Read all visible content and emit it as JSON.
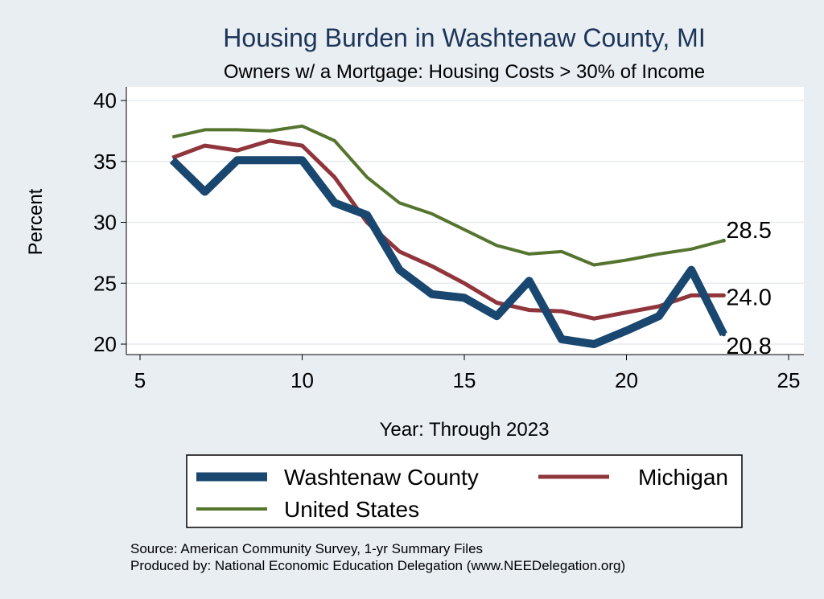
{
  "chart_data": {
    "type": "line",
    "title": "Housing Burden in Washtenaw County, MI",
    "subtitle": "Owners w/ a Mortgage: Housing Costs > 30% of Income",
    "xlabel": "Year: Through 2023",
    "ylabel": "Percent",
    "xlim": [
      5,
      25
    ],
    "ylim": [
      19.5,
      40.5
    ],
    "xticks": [
      5,
      10,
      15,
      20,
      25
    ],
    "yticks": [
      20,
      25,
      30,
      35,
      40
    ],
    "x": [
      6,
      7,
      8,
      9,
      10,
      11,
      12,
      13,
      14,
      15,
      16,
      17,
      18,
      19,
      20,
      21,
      22,
      23
    ],
    "series": [
      {
        "name": "Washtenaw County",
        "color": "#1a476f",
        "values": [
          35.1,
          32.5,
          35.1,
          35.1,
          35.1,
          31.6,
          30.6,
          26.1,
          24.1,
          23.8,
          22.3,
          25.2,
          20.4,
          20.0,
          21.1,
          22.3,
          26.1,
          20.8
        ],
        "end_label": "20.8"
      },
      {
        "name": "Michigan",
        "color": "#90353b",
        "values": [
          35.3,
          36.3,
          35.9,
          36.7,
          36.3,
          33.7,
          30.0,
          27.6,
          26.4,
          25.0,
          23.4,
          22.8,
          22.7,
          22.1,
          22.6,
          23.1,
          24.0,
          24.0
        ],
        "end_label": "24.0"
      },
      {
        "name": "United States",
        "color": "#55752f",
        "values": [
          37.0,
          37.6,
          37.6,
          37.5,
          37.9,
          36.7,
          33.7,
          31.6,
          30.7,
          29.4,
          28.1,
          27.4,
          27.6,
          26.5,
          26.9,
          27.4,
          27.8,
          28.5
        ],
        "end_label": "28.5"
      }
    ],
    "legend": [
      {
        "name": "Washtenaw County",
        "color": "#1a476f"
      },
      {
        "name": "Michigan",
        "color": "#90353b"
      },
      {
        "name": "United States",
        "color": "#55752f"
      }
    ],
    "grid": true,
    "legend_position": "bottom"
  },
  "footnotes": {
    "source": "Source: American Community Survey, 1-yr Summary Files",
    "produced": "Produced by: National Economic Education Delegation (www.NEEDelegation.org)"
  }
}
